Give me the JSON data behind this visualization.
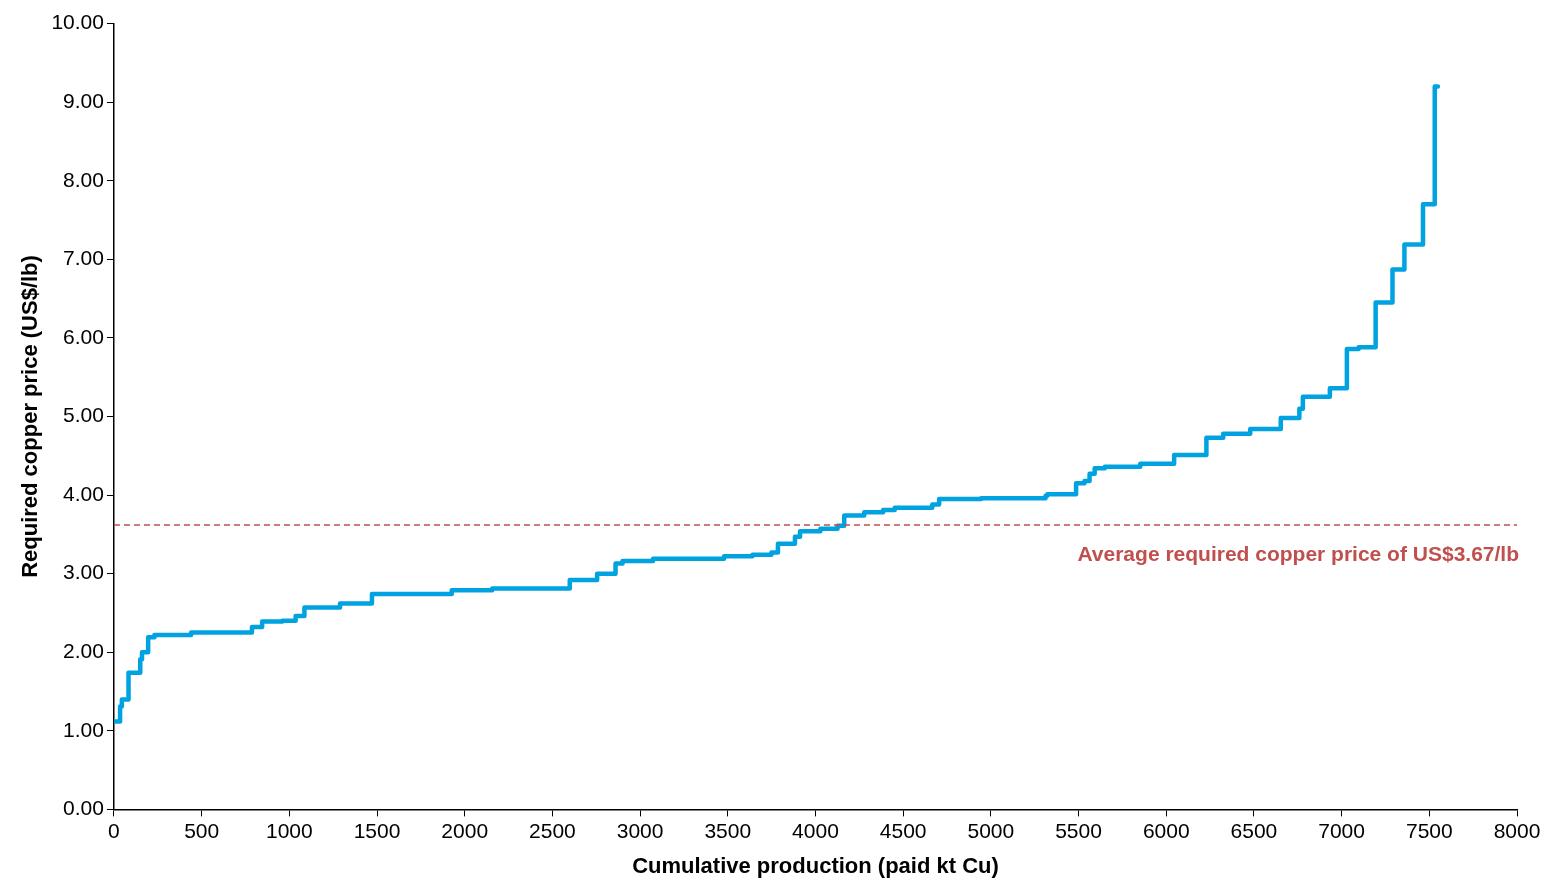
{
  "chart_data": {
    "type": "step",
    "xlabel": "Cumulative production (paid kt Cu)",
    "ylabel": "Required copper price (US$/lb)",
    "xlim": [
      0,
      8000
    ],
    "xticks": [
      0,
      500,
      1000,
      1500,
      2000,
      2500,
      3000,
      3500,
      4000,
      4500,
      5000,
      5500,
      6000,
      6500,
      7000,
      7500,
      8000
    ],
    "ylim": [
      0,
      10
    ],
    "yticks": [
      {
        "value": 0,
        "label": "0.00"
      },
      {
        "value": 1,
        "label": "1.00"
      },
      {
        "value": 2,
        "label": "2.00"
      },
      {
        "value": 3,
        "label": "3.00"
      },
      {
        "value": 4,
        "label": "4.00"
      },
      {
        "value": 5,
        "label": "5.00"
      },
      {
        "value": 6,
        "label": "6.00"
      },
      {
        "value": 7,
        "label": "7.00"
      },
      {
        "value": 8,
        "label": "8.00"
      },
      {
        "value": 9,
        "label": "9.00"
      },
      {
        "value": 10,
        "label": "10.00"
      }
    ],
    "grid": false,
    "legend": false,
    "marker": "none",
    "line_style": "solid",
    "ref_lines": [
      {
        "axis": "y",
        "value": 3.62,
        "label": "Average required copper price of US$3.67/lb",
        "color": "#c0504d",
        "line_style": "dashed"
      }
    ],
    "series": [
      {
        "color": "#00a3e0",
        "x": [
          6,
          35,
          45,
          83,
          150,
          160,
          195,
          231,
          440,
          787,
          845,
          961,
          1036,
          1086,
          1289,
          1471,
          1926,
          2157,
          2599,
          2755,
          2860,
          2900,
          3074,
          3479,
          3641,
          3749,
          3786,
          3883,
          3912,
          4028,
          4126,
          4164,
          4278,
          4386,
          4452,
          4666,
          4705,
          4944,
          5312,
          5322,
          5486,
          5534,
          5563,
          5592,
          5650,
          5852,
          6045,
          6229,
          6325,
          6479,
          6653,
          6759,
          6779,
          6933,
          7030,
          7097,
          7194,
          7290,
          7358,
          7464,
          7531,
          7549
        ],
        "values": [
          1.12,
          1.31,
          1.4,
          1.74,
          1.91,
          2.0,
          2.19,
          2.22,
          2.25,
          2.32,
          2.39,
          2.4,
          2.46,
          2.57,
          2.62,
          2.74,
          2.79,
          2.81,
          2.92,
          3.0,
          3.13,
          3.16,
          3.19,
          3.22,
          3.24,
          3.27,
          3.38,
          3.47,
          3.54,
          3.57,
          3.61,
          3.74,
          3.78,
          3.81,
          3.84,
          3.88,
          3.95,
          3.96,
          3.99,
          4.01,
          4.15,
          4.18,
          4.27,
          4.34,
          4.36,
          4.4,
          4.51,
          4.73,
          4.78,
          4.84,
          4.98,
          5.1,
          5.25,
          5.36,
          5.86,
          5.88,
          6.45,
          6.87,
          7.19,
          7.7,
          9.2,
          9.2
        ]
      }
    ]
  }
}
